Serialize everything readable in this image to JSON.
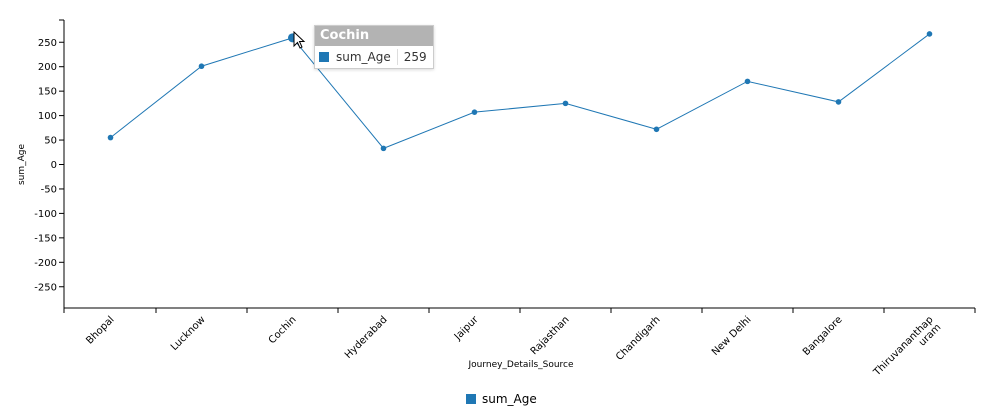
{
  "chart_data": {
    "type": "line",
    "categories": [
      "Bhopal",
      "Lucknow",
      "Cochin",
      "Hyderabad",
      "Jaipur",
      "Rajasthan",
      "Chandigarh",
      "New Delhi",
      "Bangalore",
      "Thiruvananthapuram"
    ],
    "category_labels": [
      "Bhopal",
      "Lucknow",
      "Cochin",
      "Hyderabad",
      "Jaipur",
      "Rajasthan",
      "Chandigarh",
      "New Delhi",
      "Bangalore",
      "Thiruvananthap|uram"
    ],
    "series": [
      {
        "name": "sum_Age",
        "values": [
          55,
          201,
          259,
          33,
          107,
          125,
          72,
          170,
          128,
          267
        ],
        "color": "#1f77b4"
      }
    ],
    "xlabel": "Journey_Details_Source",
    "ylabel": "sum_Age",
    "ylim": [
      -290,
      290
    ],
    "yticks": [
      250,
      200,
      150,
      100,
      50,
      0,
      -50,
      -100,
      -150,
      -200,
      -250
    ],
    "grid": false,
    "legend": "bottom-center",
    "highlighted_index": 2
  },
  "tooltip": {
    "title": "Cochin",
    "series_name": "sum_Age",
    "value": "259",
    "color": "#1f77b4"
  },
  "legend": {
    "label": "sum_Age",
    "color": "#1f77b4"
  }
}
